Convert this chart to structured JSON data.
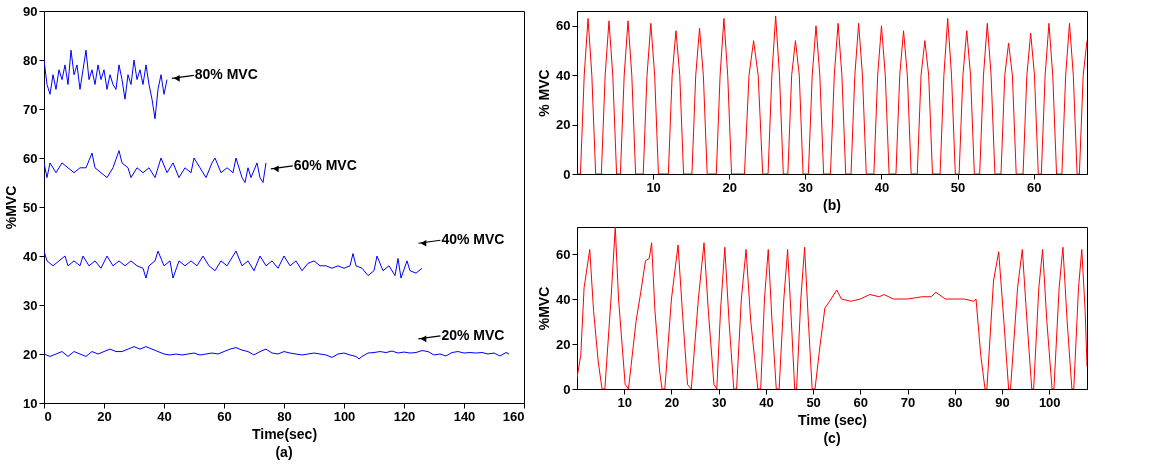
{
  "chart_data": [
    {
      "type": "line",
      "xlabel": "Time(sec)",
      "ylabel": "%MVC",
      "xlim": [
        0,
        160
      ],
      "ylim": [
        10,
        90
      ],
      "xticks": [
        0,
        20,
        40,
        60,
        80,
        100,
        120,
        140,
        160
      ],
      "yticks": [
        10,
        20,
        30,
        40,
        50,
        60,
        70,
        80,
        90
      ],
      "annotations": [
        "(a)"
      ],
      "series": [
        {
          "name": "80% MVC",
          "color": "#0000ff",
          "x": [
            0,
            1,
            2,
            3,
            4,
            5,
            6,
            7,
            8,
            9,
            10,
            11,
            12,
            13,
            14,
            15,
            16,
            17,
            18,
            19,
            20,
            21,
            22,
            23,
            24,
            25,
            26,
            27,
            28,
            29,
            30,
            31,
            32,
            33,
            34,
            35,
            36,
            37,
            38,
            39,
            40,
            41
          ],
          "values": [
            80,
            75,
            73,
            77,
            74,
            78,
            76,
            79,
            75,
            82,
            77,
            79,
            74,
            78,
            82,
            76,
            78,
            75,
            79,
            76,
            78,
            74,
            77,
            75,
            74,
            79,
            76,
            72,
            77,
            75,
            80,
            76,
            78,
            75,
            79,
            75,
            72,
            68,
            74,
            77,
            73,
            76
          ]
        },
        {
          "name": "60% MVC",
          "color": "#0000ff",
          "x": [
            0,
            1,
            2,
            4,
            6,
            8,
            10,
            12,
            14,
            16,
            17,
            19,
            21,
            23,
            25,
            26,
            28,
            29,
            31,
            33,
            35,
            37,
            39,
            41,
            43,
            45,
            47,
            49,
            50,
            52,
            54,
            56,
            57,
            59,
            61,
            63,
            64,
            66,
            67,
            68,
            69,
            71,
            72,
            73,
            74
          ],
          "values": [
            59,
            56,
            59,
            57,
            59,
            58,
            57,
            58,
            58,
            61,
            58,
            57,
            56,
            58,
            61.5,
            59,
            58,
            56,
            58,
            57,
            58,
            56,
            60,
            57,
            59,
            56,
            58,
            57,
            60,
            58,
            56,
            59,
            60,
            57,
            58,
            57,
            60,
            56,
            55,
            58,
            56,
            59,
            56,
            55,
            59
          ]
        },
        {
          "name": "40% MVC",
          "color": "#0000ff",
          "x": [
            0,
            1,
            3,
            5,
            7,
            8,
            10,
            12,
            13,
            15,
            17,
            19,
            21,
            23,
            25,
            27,
            29,
            31,
            33,
            34,
            35,
            37,
            38,
            40,
            42,
            43,
            45,
            47,
            49,
            51,
            53,
            55,
            57,
            59,
            61,
            63,
            64,
            66,
            68,
            70,
            72,
            74,
            76,
            78,
            80,
            82,
            84,
            86,
            88,
            90,
            92,
            94,
            96,
            98,
            100,
            102,
            103,
            104,
            106,
            108,
            110,
            111,
            113,
            115,
            117,
            118,
            119,
            121,
            122,
            124,
            125,
            126
          ],
          "values": [
            41,
            39,
            38,
            39,
            40,
            38,
            39,
            38,
            40,
            38,
            39,
            37.5,
            40,
            38,
            39,
            38,
            39,
            38,
            37.5,
            35.5,
            38,
            39,
            41,
            38,
            39,
            35.5,
            39,
            38,
            39,
            38,
            40,
            38,
            37,
            39,
            38,
            40,
            41,
            38,
            39,
            37,
            40,
            38,
            39,
            37.5,
            40,
            38,
            39,
            37,
            38.5,
            39,
            38,
            38,
            37.5,
            38,
            37.5,
            38,
            40.5,
            38,
            37.5,
            36,
            37,
            40,
            37,
            38,
            36,
            39.5,
            35.5,
            39,
            37,
            36.5,
            37,
            37.5
          ]
        },
        {
          "name": "20% MVC",
          "color": "#0000ff",
          "x": [
            0,
            2,
            4,
            6,
            8,
            10,
            12,
            14,
            16,
            18,
            20,
            22,
            24,
            26,
            28,
            30,
            32,
            34,
            36,
            38,
            40,
            42,
            44,
            46,
            48,
            50,
            52,
            54,
            56,
            58,
            60,
            62,
            64,
            66,
            68,
            70,
            72,
            74,
            76,
            78,
            80,
            82,
            84,
            86,
            88,
            90,
            92,
            94,
            96,
            98,
            100,
            102,
            104,
            105,
            106,
            108,
            110,
            112,
            114,
            116,
            118,
            120,
            122,
            124,
            126,
            128,
            130,
            132,
            134,
            136,
            138,
            140,
            142,
            144,
            146,
            148,
            150,
            152,
            154,
            155
          ],
          "values": [
            20,
            19.5,
            20,
            20.5,
            19.5,
            20.5,
            20,
            19.5,
            20.5,
            20,
            20.5,
            21,
            20.5,
            20.5,
            21,
            21.5,
            21,
            21.5,
            21,
            20.5,
            20,
            19.8,
            20,
            19.8,
            20,
            20.2,
            19.8,
            20,
            20.2,
            20,
            20.5,
            21,
            21.3,
            20.8,
            20.5,
            19.8,
            20.5,
            21,
            20.2,
            20,
            20.5,
            20.2,
            20,
            19.8,
            20,
            20.2,
            20,
            19.8,
            19.3,
            20,
            20.2,
            19.8,
            19.5,
            19,
            19.5,
            20.2,
            20.3,
            20.5,
            20.3,
            20.6,
            20.2,
            20.4,
            20.2,
            20.3,
            20.7,
            20.5,
            19.8,
            20,
            19.6,
            20.3,
            20.5,
            20.2,
            20.3,
            20.2,
            20.3,
            20,
            20.2,
            19.6,
            20.3,
            20
          ]
        }
      ]
    },
    {
      "type": "line",
      "ylabel": "% MVC",
      "xlim": [
        0,
        67
      ],
      "ylim": [
        0,
        66
      ],
      "xticks": [
        10,
        20,
        30,
        40,
        50,
        60
      ],
      "yticks": [
        0,
        20,
        40,
        60
      ],
      "annotations": [
        "(b)"
      ],
      "series": [
        {
          "color": "#ff0000",
          "x": [
            0,
            0.45,
            0.95,
            1.45,
            1.95,
            2.45,
            3.2,
            3.7,
            4.2,
            4.7,
            5.2,
            5.7,
            6.2,
            6.7,
            7.2,
            7.7,
            8.7,
            9.2,
            9.7,
            10.2,
            10.7,
            12.0,
            12.5,
            13.0,
            13.5,
            14.0,
            15.1,
            15.6,
            16.1,
            16.6,
            17.1,
            18.3,
            18.8,
            19.3,
            19.8,
            20.3,
            22.0,
            22.6,
            23.2,
            23.8,
            24.4,
            25.1,
            25.6,
            26.1,
            26.6,
            27.1,
            27.7,
            28.2,
            28.7,
            29.2,
            29.7,
            30.4,
            30.9,
            31.4,
            31.9,
            32.4,
            33.3,
            33.8,
            34.3,
            34.8,
            35.3,
            36.0,
            36.5,
            37.0,
            37.5,
            38.0,
            39.0,
            39.5,
            40.0,
            40.5,
            41.0,
            41.9,
            42.4,
            42.9,
            43.4,
            43.9,
            44.7,
            45.2,
            45.7,
            46.2,
            46.7,
            47.7,
            48.2,
            48.7,
            49.2,
            49.7,
            50.2,
            50.7,
            51.2,
            51.7,
            52.2,
            52.9,
            53.4,
            53.9,
            54.4,
            54.9,
            55.7,
            56.2,
            56.7,
            57.2,
            57.7,
            58.6,
            59.1,
            59.6,
            60.1,
            60.6,
            61.0,
            61.5,
            62.0,
            62.5,
            63.0,
            63.7,
            64.2,
            64.7,
            65.2,
            65.7,
            66.0,
            66.5,
            67.0
          ],
          "values": [
            0,
            0,
            40,
            63,
            40,
            0,
            0,
            40,
            62,
            40,
            0,
            0,
            40,
            62,
            40,
            0,
            0,
            40,
            61,
            40,
            0,
            0,
            40,
            58,
            40,
            0,
            0,
            40,
            59,
            40,
            0,
            0,
            40,
            63,
            40,
            0,
            0,
            40,
            54,
            40,
            0,
            0,
            40,
            64,
            40,
            0,
            0,
            40,
            54,
            40,
            0,
            0,
            40,
            60,
            40,
            0,
            0,
            40,
            61,
            40,
            0,
            0,
            40,
            61,
            40,
            0,
            0,
            40,
            60,
            40,
            0,
            0,
            40,
            58,
            40,
            0,
            0,
            40,
            54,
            40,
            0,
            0,
            40,
            63,
            40,
            0,
            0,
            40,
            58,
            40,
            0,
            0,
            40,
            61,
            40,
            0,
            0,
            40,
            53,
            40,
            0,
            0,
            40,
            57,
            40,
            0,
            0,
            40,
            61,
            40,
            0,
            0,
            40,
            61,
            40,
            0,
            0,
            40,
            54
          ]
        }
      ]
    },
    {
      "type": "line",
      "xlabel": "Time (sec)",
      "ylabel": "%MVC",
      "xlim": [
        0,
        108
      ],
      "ylim": [
        0,
        72
      ],
      "xticks": [
        10,
        20,
        30,
        40,
        50,
        60,
        70,
        80,
        90,
        100
      ],
      "yticks": [
        0,
        20,
        40,
        60
      ],
      "annotations": [
        "(c)"
      ],
      "series": [
        {
          "color": "#ff0000",
          "x": [
            0,
            0.8,
            1.5,
            2.7,
            3.5,
            4.5,
            5.3,
            5.9,
            7.2,
            8.1,
            8.8,
            10.2,
            10.9,
            12.5,
            13.5,
            14.5,
            15.3,
            15.8,
            16.5,
            17.5,
            18.0,
            18.6,
            20.0,
            21.4,
            22.3,
            23.4,
            24.2,
            25.7,
            26.9,
            27.8,
            29.0,
            29.6,
            30.4,
            31.3,
            32.2,
            33.2,
            33.8,
            34.8,
            35.8,
            36.8,
            38.3,
            38.9,
            39.7,
            40.5,
            41.3,
            42.2,
            42.8,
            43.8,
            44.6,
            45.4,
            46.1,
            46.5,
            47.4,
            48.2,
            49.0,
            49.8,
            50.4,
            51.5,
            52.5,
            53.5,
            55,
            56,
            58,
            60,
            62,
            64,
            65,
            67,
            70,
            73,
            75,
            76,
            78,
            80,
            82,
            84,
            84.5,
            85.5,
            86.4,
            86.8,
            88.2,
            89.3,
            90.4,
            91.4,
            91.8,
            93.3,
            94.3,
            95.3,
            96.3,
            96.7,
            97.8,
            98.6,
            99.5,
            100.6,
            101.0,
            102.1,
            102.9,
            103.8,
            104.8,
            105.2,
            106.2,
            106.9,
            107.6,
            108
          ],
          "values": [
            5,
            15,
            45,
            62,
            35,
            12,
            0,
            0,
            40,
            72,
            40,
            2,
            0,
            30,
            43,
            57,
            58,
            65,
            35,
            8,
            0,
            0,
            40,
            64,
            35,
            2,
            0,
            40,
            65,
            35,
            2,
            0,
            35,
            63,
            30,
            0,
            0,
            40,
            62,
            30,
            0,
            0,
            40,
            62,
            30,
            0,
            0,
            40,
            62,
            30,
            0,
            0,
            40,
            63,
            30,
            0,
            0,
            20,
            36,
            39,
            44,
            40,
            39,
            40,
            42,
            41,
            42,
            40,
            40,
            41,
            41,
            43,
            40,
            40,
            40,
            39,
            40,
            15,
            0,
            0,
            48,
            61,
            30,
            0,
            0,
            45,
            62,
            30,
            0,
            0,
            45,
            62,
            30,
            0,
            0,
            45,
            63,
            30,
            0,
            0,
            45,
            62,
            35,
            10
          ]
        }
      ]
    }
  ]
}
